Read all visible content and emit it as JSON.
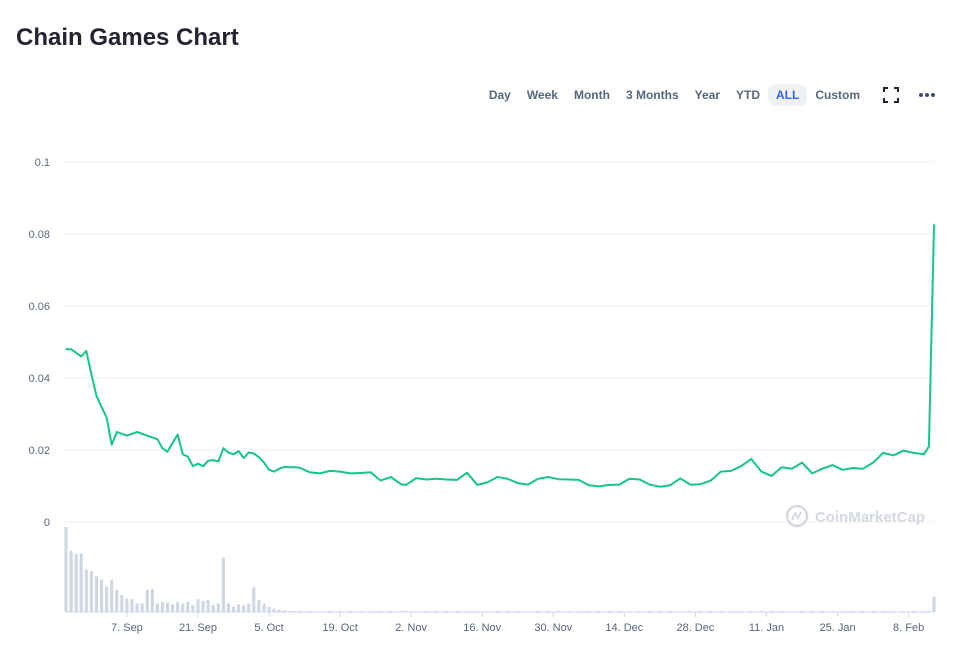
{
  "title": "Chain Games Chart",
  "ranges": [
    "Day",
    "Week",
    "Month",
    "3 Months",
    "Year",
    "YTD",
    "ALL",
    "Custom"
  ],
  "active_range": "ALL",
  "watermark": "CoinMarketCap",
  "colors": {
    "line": "#16c784",
    "volume": "#cfd6e4",
    "active_bg": "#eff2f5",
    "active_text": "#3861fb",
    "grid": "#eff2f5",
    "axis_text": "#58667e"
  },
  "chart_data": {
    "type": "line",
    "title": "Chain Games Chart",
    "x": [
      "2020-08-26",
      "2020-08-27",
      "2020-08-28",
      "2020-08-29",
      "2020-08-30",
      "2020-08-31",
      "2020-09-01",
      "2020-09-02",
      "2020-09-03",
      "2020-09-04",
      "2020-09-05",
      "2020-09-06",
      "2020-09-07",
      "2020-09-08",
      "2020-09-09",
      "2020-09-10",
      "2020-09-11",
      "2020-09-12",
      "2020-09-13",
      "2020-09-14",
      "2020-09-15",
      "2020-09-16",
      "2020-09-17",
      "2020-09-18",
      "2020-09-19",
      "2020-09-20",
      "2020-09-21",
      "2020-09-22",
      "2020-09-23",
      "2020-09-24",
      "2020-09-25",
      "2020-09-26",
      "2020-09-27",
      "2020-09-28",
      "2020-09-29",
      "2020-09-30",
      "2020-10-01",
      "2020-10-02",
      "2020-10-03",
      "2020-10-04",
      "2020-10-05",
      "2020-10-06",
      "2020-10-07",
      "2020-10-08",
      "2020-10-09",
      "2020-10-10",
      "2020-10-11",
      "2020-10-13",
      "2020-10-15",
      "2020-10-17",
      "2020-10-19",
      "2020-10-21",
      "2020-10-23",
      "2020-10-25",
      "2020-10-27",
      "2020-10-29",
      "2020-10-31",
      "2020-11-01",
      "2020-11-03",
      "2020-11-05",
      "2020-11-07",
      "2020-11-09",
      "2020-11-11",
      "2020-11-13",
      "2020-11-15",
      "2020-11-17",
      "2020-11-19",
      "2020-11-21",
      "2020-11-23",
      "2020-11-25",
      "2020-11-27",
      "2020-11-29",
      "2020-12-01",
      "2020-12-03",
      "2020-12-05",
      "2020-12-07",
      "2020-12-09",
      "2020-12-11",
      "2020-12-13",
      "2020-12-15",
      "2020-12-17",
      "2020-12-19",
      "2020-12-21",
      "2020-12-23",
      "2020-12-25",
      "2020-12-27",
      "2020-12-29",
      "2020-12-31",
      "2021-01-02",
      "2021-01-04",
      "2021-01-06",
      "2021-01-08",
      "2021-01-10",
      "2021-01-12",
      "2021-01-14",
      "2021-01-16",
      "2021-01-18",
      "2021-01-20",
      "2021-01-22",
      "2021-01-24",
      "2021-01-26",
      "2021-01-28",
      "2021-01-30",
      "2021-02-01",
      "2021-02-03",
      "2021-02-05",
      "2021-02-07",
      "2021-02-09",
      "2021-02-11",
      "2021-02-12",
      "2021-02-13"
    ],
    "y": [
      0.048,
      0.048,
      0.047,
      0.046,
      0.0475,
      0.041,
      0.035,
      0.032,
      0.029,
      0.0215,
      0.025,
      0.0245,
      0.024,
      0.0245,
      0.025,
      0.0245,
      0.024,
      0.0235,
      0.023,
      0.0205,
      0.0195,
      0.022,
      0.0243,
      0.0188,
      0.0182,
      0.0155,
      0.0162,
      0.0155,
      0.017,
      0.0172,
      0.0168,
      0.0205,
      0.0193,
      0.0188,
      0.0197,
      0.0178,
      0.0193,
      0.019,
      0.018,
      0.0165,
      0.0145,
      0.014,
      0.0148,
      0.0153,
      0.0152,
      0.0152,
      0.0151,
      0.0138,
      0.0135,
      0.0142,
      0.014,
      0.0135,
      0.0136,
      0.0138,
      0.0115,
      0.0125,
      0.0105,
      0.0103,
      0.0122,
      0.0118,
      0.012,
      0.0118,
      0.0117,
      0.0137,
      0.0103,
      0.011,
      0.0125,
      0.012,
      0.0108,
      0.0104,
      0.012,
      0.0125,
      0.0119,
      0.0118,
      0.0117,
      0.0102,
      0.0099,
      0.0103,
      0.0104,
      0.012,
      0.0118,
      0.0104,
      0.0098,
      0.0102,
      0.0121,
      0.0104,
      0.0105,
      0.0115,
      0.014,
      0.0142,
      0.0155,
      0.0175,
      0.014,
      0.0128,
      0.0152,
      0.0148,
      0.0165,
      0.0135,
      0.0148,
      0.0158,
      0.0145,
      0.015,
      0.0148,
      0.0165,
      0.0192,
      0.0185,
      0.0198,
      0.0192,
      0.0188,
      0.021,
      0.0825
    ],
    "volume_relative": [
      1.0,
      0.72,
      0.68,
      0.69,
      0.5,
      0.48,
      0.42,
      0.38,
      0.3,
      0.38,
      0.26,
      0.2,
      0.16,
      0.15,
      0.1,
      0.1,
      0.26,
      0.27,
      0.1,
      0.12,
      0.11,
      0.09,
      0.12,
      0.1,
      0.12,
      0.08,
      0.15,
      0.13,
      0.14,
      0.08,
      0.1,
      0.64,
      0.1,
      0.06,
      0.09,
      0.08,
      0.1,
      0.29,
      0.14,
      0.1,
      0.06,
      0.04,
      0.03,
      0.02,
      0.01,
      0.01,
      0.01,
      0.01,
      0.01,
      0.01,
      0.01,
      0.01,
      0.01,
      0.01,
      0.01,
      0.01,
      0.01,
      0.01,
      0.01,
      0.01,
      0.01,
      0.01,
      0.01,
      0.01,
      0.01,
      0.01,
      0.01,
      0.01,
      0.01,
      0.01,
      0.01,
      0.01,
      0.01,
      0.01,
      0.01,
      0.01,
      0.01,
      0.01,
      0.01,
      0.01,
      0.01,
      0.01,
      0.01,
      0.01,
      0.01,
      0.01,
      0.01,
      0.01,
      0.01,
      0.01,
      0.01,
      0.01,
      0.01,
      0.01,
      0.01,
      0.01,
      0.01,
      0.01,
      0.01,
      0.01,
      0.01,
      0.01,
      0.01,
      0.01,
      0.01,
      0.01,
      0.01,
      0.01,
      0.01,
      0.01,
      0.18
    ],
    "ylim": [
      0,
      0.1
    ],
    "yticks": [
      0,
      0.02,
      0.04,
      0.06,
      0.08,
      0.1
    ],
    "ytick_labels": [
      "0",
      "0.02",
      "0.04",
      "0.06",
      "0.08",
      "0.1"
    ],
    "xticks": [
      {
        "date": "2020-09-07",
        "label": "7. Sep"
      },
      {
        "date": "2020-09-21",
        "label": "21. Sep"
      },
      {
        "date": "2020-10-05",
        "label": "5. Oct"
      },
      {
        "date": "2020-10-19",
        "label": "19. Oct"
      },
      {
        "date": "2020-11-02",
        "label": "2. Nov"
      },
      {
        "date": "2020-11-16",
        "label": "16. Nov"
      },
      {
        "date": "2020-11-30",
        "label": "30. Nov"
      },
      {
        "date": "2020-12-14",
        "label": "14. Dec"
      },
      {
        "date": "2020-12-28",
        "label": "28. Dec"
      },
      {
        "date": "2021-01-11",
        "label": "11. Jan"
      },
      {
        "date": "2021-01-25",
        "label": "25. Jan"
      },
      {
        "date": "2021-02-08",
        "label": "8. Feb"
      }
    ],
    "grid": true,
    "legend": "none"
  }
}
